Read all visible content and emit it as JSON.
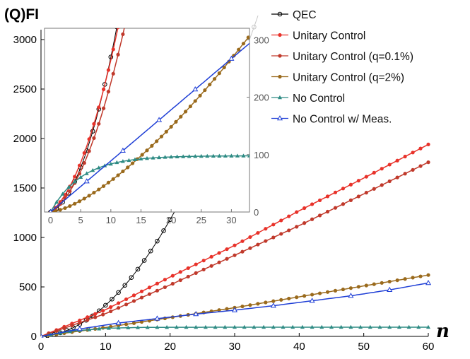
{
  "chart_data": [
    {
      "id": "main",
      "type": "line",
      "title": "",
      "ylabel": "(Q)FI",
      "xlabel": "n",
      "xlim": [
        0,
        60
      ],
      "ylim": [
        0,
        3100
      ],
      "xticks": [
        0,
        10,
        20,
        30,
        40,
        50,
        60
      ],
      "yticks": [
        0,
        500,
        1000,
        1500,
        2000,
        2500,
        3000
      ],
      "xtick_labels": [
        "0",
        "10",
        "20",
        "30",
        "40",
        "50",
        "60"
      ],
      "ytick_labels": [
        "0",
        "500",
        "1000",
        "1500",
        "2000",
        "2500",
        "3000"
      ],
      "legend_position": "top-right",
      "series": [
        {
          "name": "QEC",
          "color": "#000000",
          "marker": "circle-open",
          "model": "quadratic",
          "a": 0.8,
          "b": 1.2,
          "annotations_faded_beyond_x": 22
        },
        {
          "name": "Unitary Control",
          "color": "#e8322a",
          "marker": "dot",
          "model": "linear-sat",
          "values_at": {
            "x": [
              0,
              10,
              20,
              30,
              40,
              50,
              60
            ],
            "y": [
              0,
              270,
              600,
              920,
              1270,
              1600,
              1940
            ]
          }
        },
        {
          "name": "Unitary Control (q=0.1%)",
          "color": "#c0392b",
          "marker": "dot",
          "values_at": {
            "x": [
              0,
              10,
              20,
              30,
              40,
              50,
              60
            ],
            "y": [
              0,
              230,
              520,
              820,
              1120,
              1440,
              1760
            ]
          }
        },
        {
          "name": "Unitary Control (q=2%)",
          "color": "#9a6a1c",
          "marker": "dot",
          "values_at": {
            "x": [
              0,
              10,
              20,
              30,
              40,
              50,
              60
            ],
            "y": [
              0,
              90,
              190,
              290,
              400,
              510,
              620
            ]
          }
        },
        {
          "name": "No Control",
          "color": "#2e8b84",
          "marker": "triangle-filled",
          "values_at": {
            "x": [
              0,
              5,
              10,
              15,
              20,
              30,
              40,
              50,
              60
            ],
            "y": [
              0,
              55,
              82,
              90,
              92,
              93,
              93,
              93,
              93
            ]
          }
        },
        {
          "name": "No Control w/ Meas.",
          "color": "#1f3fd6",
          "marker": "triangle-open",
          "values_at": {
            "x": [
              0,
              6,
              12,
              18,
              24,
              30,
              36,
              42,
              48,
              54,
              60
            ],
            "y": [
              0,
              75,
              135,
              180,
              225,
              265,
              310,
              360,
              410,
              470,
              540
            ]
          }
        }
      ]
    },
    {
      "id": "inset",
      "type": "line",
      "title": "",
      "xlim": [
        -1,
        33
      ],
      "ylim": [
        0,
        320
      ],
      "xticks": [
        0,
        5,
        10,
        15,
        20,
        25,
        30
      ],
      "yticks": [
        0,
        100,
        200,
        300
      ],
      "xtick_labels": [
        "0",
        "5",
        "10",
        "15",
        "20",
        "25",
        "30"
      ],
      "ytick_labels": [
        "0",
        "100",
        "200",
        "300"
      ],
      "yaxis_side": "right"
    }
  ]
}
